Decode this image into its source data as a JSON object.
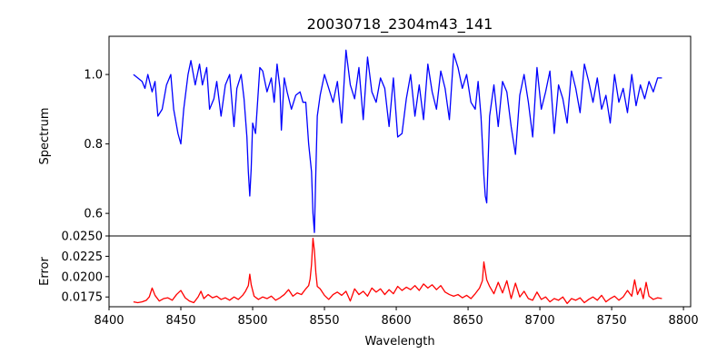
{
  "figure": {
    "title": "20030718_2304m43_141"
  },
  "chart_data": [
    {
      "name": "spectrum-panel",
      "type": "line",
      "ylabel": "Spectrum",
      "xlim": [
        8400,
        8805
      ],
      "ylim": [
        0.535,
        1.11
      ],
      "yticks": [
        0.6,
        0.8,
        1.0
      ],
      "ytick_labels": [
        "0.6",
        "0.8",
        "1.0"
      ],
      "grid": false,
      "series": [
        {
          "color": "#0000ff",
          "x": [
            8417,
            8420,
            8423,
            8425,
            8427,
            8430,
            8432,
            8434,
            8437,
            8440,
            8443,
            8445,
            8448,
            8450,
            8452,
            8455,
            8457,
            8460,
            8463,
            8465,
            8468,
            8470,
            8473,
            8475,
            8478,
            8481,
            8484,
            8487,
            8489,
            8492,
            8494,
            8496,
            8497,
            8498,
            8499,
            8500,
            8502,
            8505,
            8507,
            8510,
            8513,
            8515,
            8517,
            8519,
            8520,
            8522,
            8524,
            8527,
            8530,
            8533,
            8535,
            8537,
            8539,
            8540,
            8541,
            8542,
            8543,
            8544,
            8545,
            8547,
            8550,
            8553,
            8556,
            8559,
            8562,
            8565,
            8568,
            8571,
            8574,
            8577,
            8580,
            8583,
            8586,
            8589,
            8592,
            8595,
            8598,
            8601,
            8604,
            8607,
            8610,
            8613,
            8616,
            8619,
            8622,
            8625,
            8628,
            8631,
            8634,
            8637,
            8640,
            8643,
            8646,
            8649,
            8652,
            8655,
            8657,
            8659,
            8660,
            8661,
            8662,
            8663,
            8665,
            8668,
            8671,
            8674,
            8677,
            8680,
            8683,
            8686,
            8689,
            8692,
            8695,
            8698,
            8701,
            8704,
            8707,
            8710,
            8713,
            8716,
            8719,
            8722,
            8725,
            8728,
            8731,
            8734,
            8737,
            8740,
            8743,
            8746,
            8749,
            8752,
            8755,
            8758,
            8761,
            8764,
            8767,
            8770,
            8773,
            8776,
            8779,
            8782,
            8785
          ],
          "values": [
            1.0,
            0.99,
            0.98,
            0.96,
            1.0,
            0.95,
            0.98,
            0.88,
            0.9,
            0.97,
            1.0,
            0.9,
            0.83,
            0.8,
            0.9,
            1.0,
            1.04,
            0.97,
            1.03,
            0.97,
            1.02,
            0.9,
            0.93,
            0.98,
            0.88,
            0.97,
            1.0,
            0.85,
            0.96,
            1.0,
            0.93,
            0.82,
            0.72,
            0.65,
            0.73,
            0.86,
            0.83,
            1.02,
            1.01,
            0.95,
            0.99,
            0.92,
            1.03,
            0.96,
            0.84,
            0.99,
            0.95,
            0.9,
            0.94,
            0.95,
            0.92,
            0.92,
            0.8,
            0.76,
            0.72,
            0.6,
            0.545,
            0.72,
            0.88,
            0.94,
            1.0,
            0.96,
            0.92,
            0.98,
            0.86,
            1.07,
            0.97,
            0.93,
            1.02,
            0.87,
            1.05,
            0.95,
            0.92,
            0.99,
            0.96,
            0.85,
            0.99,
            0.82,
            0.83,
            0.93,
            1.0,
            0.88,
            0.97,
            0.87,
            1.03,
            0.95,
            0.9,
            1.01,
            0.96,
            0.87,
            1.06,
            1.02,
            0.96,
            1.0,
            0.92,
            0.9,
            0.98,
            0.88,
            0.8,
            0.71,
            0.65,
            0.63,
            0.88,
            0.97,
            0.85,
            0.98,
            0.95,
            0.85,
            0.77,
            0.94,
            1.0,
            0.92,
            0.82,
            1.02,
            0.9,
            0.95,
            1.01,
            0.83,
            0.97,
            0.93,
            0.86,
            1.01,
            0.96,
            0.89,
            1.03,
            0.98,
            0.92,
            0.99,
            0.9,
            0.94,
            0.86,
            1.0,
            0.92,
            0.96,
            0.89,
            1.0,
            0.91,
            0.97,
            0.93,
            0.98,
            0.95,
            0.99,
            0.99
          ]
        }
      ]
    },
    {
      "name": "error-panel",
      "type": "line",
      "ylabel": "Error",
      "xlabel": "Wavelength",
      "xlim": [
        8400,
        8805
      ],
      "ylim": [
        0.0163,
        0.025
      ],
      "xticks": [
        8400,
        8450,
        8500,
        8550,
        8600,
        8650,
        8700,
        8750,
        8800
      ],
      "xtick_labels": [
        "8400",
        "8450",
        "8500",
        "8550",
        "8600",
        "8650",
        "8700",
        "8750",
        "8800"
      ],
      "yticks": [
        0.0175,
        0.02,
        0.0225,
        0.025
      ],
      "ytick_labels": [
        "0.0175",
        "0.0200",
        "0.0225",
        "0.0250"
      ],
      "grid": false,
      "series": [
        {
          "color": "#ff0000",
          "x": [
            8417,
            8420,
            8423,
            8426,
            8428,
            8430,
            8432,
            8435,
            8438,
            8441,
            8444,
            8447,
            8450,
            8453,
            8456,
            8459,
            8462,
            8464,
            8466,
            8469,
            8472,
            8475,
            8478,
            8481,
            8484,
            8487,
            8490,
            8493,
            8495,
            8497,
            8498,
            8499,
            8501,
            8504,
            8507,
            8510,
            8513,
            8516,
            8519,
            8522,
            8525,
            8528,
            8531,
            8534,
            8537,
            8539,
            8540,
            8541,
            8542,
            8543,
            8544,
            8545,
            8547,
            8550,
            8553,
            8556,
            8559,
            8562,
            8565,
            8568,
            8571,
            8574,
            8577,
            8580,
            8583,
            8586,
            8589,
            8592,
            8595,
            8598,
            8601,
            8604,
            8607,
            8610,
            8613,
            8616,
            8619,
            8622,
            8625,
            8628,
            8631,
            8634,
            8637,
            8640,
            8643,
            8646,
            8649,
            8652,
            8655,
            8658,
            8660,
            8661,
            8662,
            8663,
            8665,
            8668,
            8671,
            8674,
            8677,
            8680,
            8683,
            8686,
            8689,
            8692,
            8695,
            8698,
            8701,
            8704,
            8707,
            8710,
            8713,
            8716,
            8719,
            8722,
            8725,
            8728,
            8731,
            8734,
            8737,
            8740,
            8743,
            8746,
            8749,
            8752,
            8755,
            8758,
            8761,
            8764,
            8766,
            8768,
            8770,
            8772,
            8774,
            8776,
            8779,
            8782,
            8785
          ],
          "values": [
            0.0169,
            0.0168,
            0.0169,
            0.0171,
            0.0175,
            0.0186,
            0.0177,
            0.017,
            0.0173,
            0.0174,
            0.0171,
            0.0178,
            0.0183,
            0.0174,
            0.017,
            0.0168,
            0.0175,
            0.0182,
            0.0173,
            0.0178,
            0.0174,
            0.0176,
            0.0172,
            0.0174,
            0.0171,
            0.0175,
            0.0172,
            0.0177,
            0.0182,
            0.0189,
            0.0203,
            0.019,
            0.0176,
            0.0172,
            0.0175,
            0.0173,
            0.0176,
            0.0171,
            0.0174,
            0.0178,
            0.0184,
            0.0176,
            0.018,
            0.0178,
            0.0185,
            0.0189,
            0.0197,
            0.0215,
            0.0247,
            0.0232,
            0.0205,
            0.0188,
            0.0185,
            0.0177,
            0.0172,
            0.0178,
            0.0181,
            0.0177,
            0.0182,
            0.017,
            0.0185,
            0.0178,
            0.0182,
            0.0176,
            0.0186,
            0.0181,
            0.0185,
            0.0178,
            0.0184,
            0.0179,
            0.0188,
            0.0183,
            0.0187,
            0.0184,
            0.0189,
            0.0183,
            0.0191,
            0.0186,
            0.019,
            0.0184,
            0.0189,
            0.0181,
            0.0178,
            0.0176,
            0.0178,
            0.0174,
            0.0177,
            0.0173,
            0.0179,
            0.0186,
            0.0195,
            0.0218,
            0.0207,
            0.0196,
            0.0188,
            0.0179,
            0.0193,
            0.018,
            0.0195,
            0.0173,
            0.0192,
            0.0175,
            0.0182,
            0.0173,
            0.0171,
            0.0181,
            0.0172,
            0.0175,
            0.0169,
            0.0173,
            0.0171,
            0.0175,
            0.0167,
            0.0173,
            0.0171,
            0.0174,
            0.0168,
            0.0172,
            0.0175,
            0.0171,
            0.0177,
            0.0169,
            0.0173,
            0.0176,
            0.0171,
            0.0175,
            0.0183,
            0.0176,
            0.0196,
            0.0178,
            0.0186,
            0.0173,
            0.0193,
            0.0176,
            0.0172,
            0.0174,
            0.0173
          ]
        }
      ]
    }
  ]
}
